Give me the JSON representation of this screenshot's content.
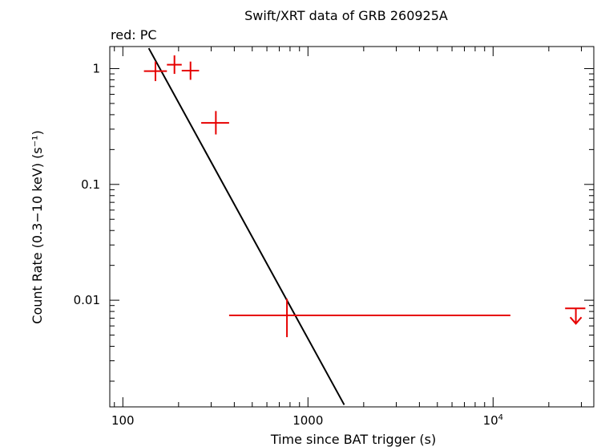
{
  "chart_data": {
    "type": "scatter",
    "title": "Swift/XRT data of GRB 260925A",
    "corner_label": "red: PC",
    "xlabel": "Time since BAT trigger (s)",
    "ylabel": "Count Rate (0.3−10 keV) (s⁻¹)",
    "x_scale": "log",
    "y_scale": "log",
    "xlim": [
      85,
      35000
    ],
    "ylim": [
      0.0012,
      1.55
    ],
    "x_ticks": [
      {
        "value": 100,
        "label": "100"
      },
      {
        "value": 1000,
        "label": "1000"
      },
      {
        "value": 10000,
        "label": "10",
        "exponent": "4"
      }
    ],
    "y_ticks": [
      {
        "value": 1,
        "label": "1"
      },
      {
        "value": 0.1,
        "label": "0.1"
      },
      {
        "value": 0.01,
        "label": "0.01"
      }
    ],
    "grid": false,
    "colors": {
      "data": "#e60000",
      "model": "#000000",
      "axes": "#000000"
    },
    "series": [
      {
        "mode": "PC",
        "points": [
          {
            "x": 150,
            "x_err": [
              130,
              173
            ],
            "y": 0.95,
            "y_err": [
              0.78,
              1.15
            ]
          },
          {
            "x": 190,
            "x_err": [
              173,
              208
            ],
            "y": 1.08,
            "y_err": [
              0.9,
              1.3
            ]
          },
          {
            "x": 232,
            "x_err": [
              208,
              258
            ],
            "y": 0.96,
            "y_err": [
              0.8,
              1.15
            ]
          },
          {
            "x": 318,
            "x_err": [
              265,
              375
            ],
            "y": 0.34,
            "y_err": [
              0.27,
              0.43
            ]
          },
          {
            "x": 770,
            "x_err": [
              375,
              12400
            ],
            "y": 0.0074,
            "y_err": [
              0.0048,
              0.0103
            ]
          }
        ],
        "upper_limits": [
          {
            "x": 28000,
            "x_err": [
              24500,
              31500
            ],
            "y": 0.0085
          }
        ]
      }
    ],
    "model_line": {
      "x": [
        138,
        1570
      ],
      "y": [
        1.5,
        0.00125
      ]
    }
  }
}
